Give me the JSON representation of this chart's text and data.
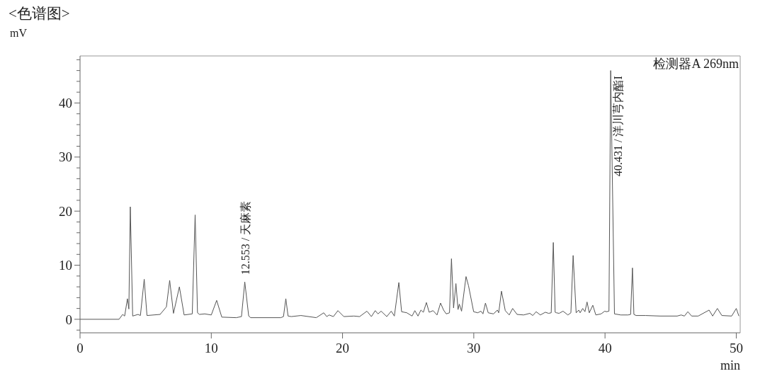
{
  "chart_data": {
    "type": "line",
    "title": "<色谱图>",
    "ylabel": "mV",
    "xlabel": "min",
    "grid": false,
    "marker": "none",
    "line_style": "solid",
    "xlim": [
      0,
      50.3
    ],
    "ylim": [
      -2.5,
      48.7
    ],
    "xticks": [
      0,
      10,
      20,
      30,
      40,
      50
    ],
    "yticks": [
      {
        "value": -2,
        "label": null
      },
      0,
      {
        "value": 2,
        "label": null
      },
      {
        "value": 4,
        "label": null
      },
      {
        "value": 6,
        "label": null
      },
      {
        "value": 8,
        "label": null
      },
      10,
      {
        "value": 12,
        "label": null
      },
      {
        "value": 14,
        "label": null
      },
      {
        "value": 16,
        "label": null
      },
      {
        "value": 18,
        "label": null
      },
      20,
      {
        "value": 22,
        "label": null
      },
      {
        "value": 24,
        "label": null
      },
      {
        "value": 26,
        "label": null
      },
      {
        "value": 28,
        "label": null
      },
      30,
      {
        "value": 32,
        "label": null
      },
      {
        "value": 34,
        "label": null
      },
      {
        "value": 36,
        "label": null
      },
      {
        "value": 38,
        "label": null
      },
      40,
      {
        "value": 42,
        "label": null
      },
      {
        "value": 44,
        "label": null
      },
      {
        "value": 46,
        "label": null
      },
      {
        "value": 48,
        "label": null
      }
    ],
    "annotations": [
      "检测器A 269nm",
      {
        "text": "12.553 / 天麻素",
        "x": 12.553,
        "y": 6.9
      },
      {
        "text": "40.431 / 洋川芎内酯I",
        "x": 40.431,
        "y": 46
      }
    ],
    "series": [
      {
        "color": "#555555",
        "x": [
          0,
          2.97,
          3.25,
          3.4,
          3.61,
          3.72,
          3.83,
          4.01,
          4.42,
          4.6,
          4.89,
          5.1,
          6.1,
          6.58,
          6.83,
          7.12,
          7.57,
          7.93,
          8.55,
          8.77,
          8.95,
          9.1,
          9.5,
          10.0,
          10.41,
          10.8,
          11.9,
          12.3,
          12.553,
          12.85,
          13.0,
          15.3,
          15.5,
          15.68,
          15.85,
          16.1,
          16.83,
          18.0,
          18.57,
          18.8,
          18.98,
          19.3,
          19.65,
          20.1,
          20.87,
          21.3,
          21.86,
          22.2,
          22.49,
          22.7,
          22.94,
          23.37,
          23.71,
          23.95,
          24.29,
          24.5,
          24.9,
          25.3,
          25.51,
          25.75,
          25.97,
          26.16,
          26.39,
          26.6,
          26.9,
          27.2,
          27.47,
          27.7,
          27.9,
          28.15,
          28.3,
          28.46,
          28.64,
          28.8,
          28.9,
          29.07,
          29.41,
          29.6,
          29.99,
          30.3,
          30.55,
          30.7,
          30.89,
          31.1,
          31.5,
          31.8,
          31.9,
          32.11,
          32.4,
          32.7,
          32.96,
          33.3,
          33.8,
          34.27,
          34.5,
          34.75,
          35.07,
          35.45,
          35.7,
          35.9,
          36.06,
          36.2,
          36.3,
          36.5,
          36.8,
          37.17,
          37.4,
          37.57,
          37.8,
          38.0,
          38.1,
          38.3,
          38.47,
          38.63,
          38.8,
          39.07,
          39.3,
          39.7,
          39.98,
          40.1,
          40.3,
          40.431,
          40.72,
          41.2,
          41.75,
          41.95,
          42.09,
          42.2,
          42.37,
          43.1,
          44.2,
          45.5,
          45.8,
          46.05,
          46.31,
          46.6,
          47.1,
          47.93,
          48.2,
          48.56,
          48.9,
          49.65,
          50.0,
          50.2
        ],
        "values": [
          0,
          0,
          0.9,
          0.6,
          3.8,
          1.9,
          20.8,
          0.6,
          0.9,
          0.7,
          7.4,
          0.7,
          0.9,
          2.3,
          7.2,
          1.1,
          6.0,
          0.8,
          1.0,
          19.3,
          1.2,
          0.9,
          1.0,
          0.8,
          3.5,
          0.4,
          0.3,
          0.5,
          6.9,
          0.6,
          0.3,
          0.3,
          0.5,
          3.8,
          0.6,
          0.5,
          0.7,
          0.3,
          1.2,
          0.5,
          0.8,
          0.5,
          1.6,
          0.5,
          0.6,
          0.5,
          1.5,
          0.5,
          1.6,
          1.0,
          1.5,
          0.5,
          1.5,
          0.6,
          6.8,
          1.4,
          1.2,
          0.6,
          1.6,
          0.6,
          1.7,
          1.3,
          3.1,
          1.3,
          1.6,
          0.8,
          3.0,
          1.7,
          1.0,
          1.2,
          11.2,
          2.1,
          6.6,
          1.8,
          2.8,
          1.5,
          7.9,
          6.2,
          1.4,
          1.2,
          1.5,
          1.0,
          3.0,
          1.2,
          1.0,
          1.7,
          1.2,
          5.2,
          1.6,
          0.8,
          2.0,
          0.9,
          0.8,
          1.1,
          0.7,
          1.4,
          0.8,
          1.3,
          1.1,
          1.2,
          14.2,
          1.3,
          1.2,
          1.1,
          1.5,
          0.8,
          1.2,
          11.8,
          1.2,
          1.7,
          1.2,
          2.0,
          1.4,
          3.2,
          1.2,
          2.6,
          0.8,
          1.0,
          1.5,
          1.4,
          1.5,
          46.0,
          1.0,
          0.8,
          0.8,
          0.9,
          9.5,
          0.9,
          0.7,
          0.7,
          0.6,
          0.6,
          0.8,
          0.6,
          1.4,
          0.6,
          0.6,
          1.7,
          0.6,
          2.0,
          0.7,
          0.6,
          2.0,
          0.6
        ]
      }
    ]
  }
}
